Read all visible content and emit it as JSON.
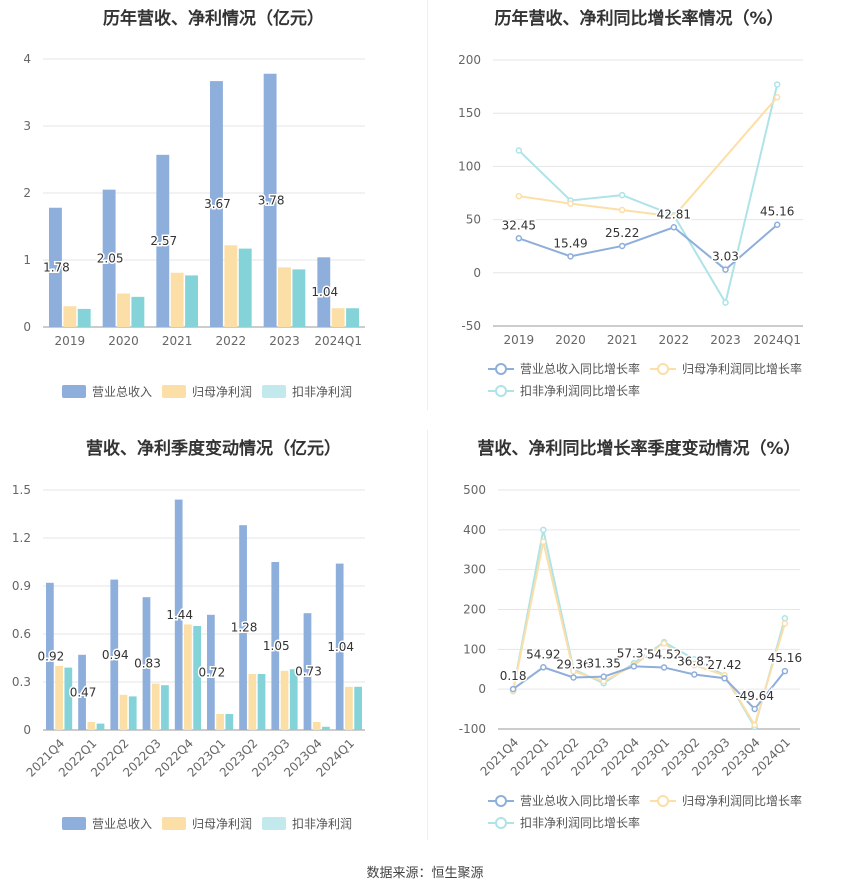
{
  "colors": {
    "revenue": "#8eaedb",
    "net_profit": "#fcdfa7",
    "deducted_profit": "#83d3d9",
    "grid": "#e6e6e6",
    "axis": "#999999"
  },
  "source": "数据来源：恒生聚源",
  "charts": [
    {
      "type": "bar",
      "title": "历年营收、净利情况（亿元）",
      "categories": [
        "2019",
        "2020",
        "2021",
        "2022",
        "2023",
        "2024Q1"
      ],
      "ylim": [
        0,
        4
      ],
      "yticks": [
        "0",
        "1",
        "2",
        "3",
        "4"
      ],
      "series": [
        {
          "name": "营业总收入",
          "values": [
            1.78,
            2.05,
            2.57,
            3.67,
            3.78,
            1.04
          ],
          "labels": [
            "1.78",
            "2.05",
            "2.57",
            "3.67",
            "3.78",
            "1.04"
          ]
        },
        {
          "name": "归母净利润",
          "values": [
            0.31,
            0.5,
            0.81,
            1.22,
            0.89,
            0.28
          ]
        },
        {
          "name": "扣非净利润",
          "values": [
            0.27,
            0.45,
            0.77,
            1.17,
            0.86,
            0.28
          ]
        }
      ],
      "legend": "bottom"
    },
    {
      "type": "line",
      "title": "历年营收、净利同比增长率情况（%）",
      "categories": [
        "2019",
        "2020",
        "2021",
        "2022",
        "2023",
        "2024Q1"
      ],
      "ylim": [
        -50,
        200
      ],
      "yticks": [
        "-50",
        "0",
        "50",
        "100",
        "150",
        "200"
      ],
      "series": [
        {
          "name": "营业总收入同比增长率",
          "values": [
            32.45,
            15.49,
            25.22,
            42.81,
            3.03,
            45.16
          ],
          "labels": [
            "32.45",
            "15.49",
            "25.22",
            "42.81",
            "3.03",
            "45.16"
          ]
        },
        {
          "name": "归母净利润同比增长率",
          "values": [
            72,
            65,
            59,
            53,
            null,
            165
          ]
        },
        {
          "name": "扣非净利润同比增长率",
          "values": [
            115,
            68,
            73,
            54,
            -28,
            177
          ]
        }
      ],
      "legend": "bottom"
    },
    {
      "type": "bar",
      "title": "营收、净利季度变动情况（亿元）",
      "categories": [
        "2021Q4",
        "2022Q1",
        "2022Q2",
        "2022Q3",
        "2022Q4",
        "2023Q1",
        "2023Q2",
        "2023Q3",
        "2023Q4",
        "2024Q1"
      ],
      "ylim": [
        0,
        1.5
      ],
      "yticks": [
        "0",
        "0.3",
        "0.6",
        "0.9",
        "1.2",
        "1.5"
      ],
      "series": [
        {
          "name": "营业总收入",
          "values": [
            0.92,
            0.47,
            0.94,
            0.83,
            1.44,
            0.72,
            1.28,
            1.05,
            0.73,
            1.04
          ],
          "labels": [
            "0.92",
            "0.47",
            "0.94",
            "0.83",
            "1.44",
            "0.72",
            "1.28",
            "1.05",
            "0.73",
            "1.04"
          ]
        },
        {
          "name": "归母净利润",
          "values": [
            0.4,
            0.05,
            0.22,
            0.29,
            0.66,
            0.1,
            0.35,
            0.37,
            0.05,
            0.27
          ]
        },
        {
          "name": "扣非净利润",
          "values": [
            0.39,
            0.04,
            0.21,
            0.28,
            0.65,
            0.1,
            0.35,
            0.38,
            0.02,
            0.27
          ]
        }
      ],
      "legend": "bottom"
    },
    {
      "type": "line",
      "title": "营收、净利同比增长率季度变动情况（%）",
      "categories": [
        "2021Q4",
        "2022Q1",
        "2022Q2",
        "2022Q3",
        "2022Q4",
        "2023Q1",
        "2023Q2",
        "2023Q3",
        "2023Q4",
        "2024Q1"
      ],
      "ylim": [
        -100,
        500
      ],
      "yticks": [
        "-100",
        "0",
        "100",
        "200",
        "300",
        "400",
        "500"
      ],
      "series": [
        {
          "name": "营业总收入同比增长率",
          "values": [
            0.18,
            54.92,
            29.36,
            31.35,
            57.37,
            54.52,
            36.87,
            27.42,
            -49.64,
            45.16
          ],
          "labels": [
            "0.18",
            "54.92",
            "29.36",
            "31.35",
            "57.37",
            "54.52",
            "36.87",
            "27.42",
            "-49.64",
            "45.16"
          ]
        },
        {
          "name": "归母净利润同比增长率",
          "values": [
            -5,
            370,
            45,
            20,
            60,
            115,
            60,
            35,
            -90,
            165
          ]
        },
        {
          "name": "扣非净利润同比增长率",
          "values": [
            -5,
            400,
            50,
            15,
            65,
            118,
            75,
            35,
            -95,
            178
          ]
        }
      ],
      "legend": "bottom"
    }
  ]
}
